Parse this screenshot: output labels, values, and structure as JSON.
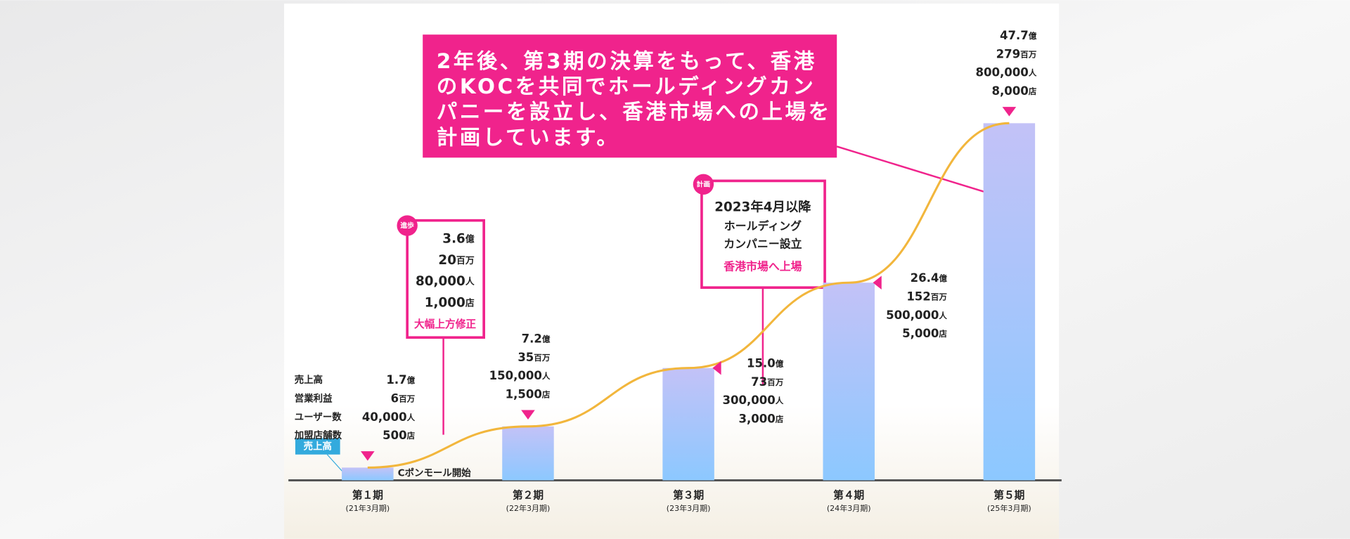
{
  "chart_data": {
    "type": "bar",
    "categories": [
      "第１期",
      "第２期",
      "第３期",
      "第４期",
      "第５期"
    ],
    "sublabels": [
      "(21年3月期)",
      "(22年3月期)",
      "(23年3月期)",
      "(24年3月期)",
      "(25年3月期)"
    ],
    "series": [
      {
        "name": "売上高",
        "unit": "億",
        "color": "#9ec4ff",
        "values": [
          1.7,
          7.2,
          15.0,
          26.4,
          47.7
        ],
        "value_labels": [
          "1.7",
          "7.2",
          "15.0",
          "26.4",
          "47.7"
        ]
      },
      {
        "name": "営業利益",
        "unit": "百万",
        "values": [
          6,
          35,
          73,
          152,
          279
        ]
      },
      {
        "name": "ユーザー数",
        "unit": "人",
        "values": [
          40000,
          150000,
          300000,
          500000,
          800000
        ],
        "value_labels": [
          "40,000",
          "150,000",
          "300,000",
          "500,000",
          "800,000"
        ]
      },
      {
        "name": "加盟店舗数",
        "unit": "店",
        "values": [
          500,
          1500,
          3000,
          5000,
          8000
        ],
        "value_labels": [
          "500",
          "1,500",
          "3,000",
          "5,000",
          "8,000"
        ]
      }
    ],
    "line_color": "#f2b63c",
    "headline": [
      "2年後、第3期の決算をもって、香港",
      "のKOCを共同でホールディングカン",
      "パニーを設立し、香港市場への上場を",
      "計画しています。"
    ],
    "progress_callout": {
      "tag": "進歩",
      "values": [
        3.6,
        20,
        80000,
        1000
      ],
      "value_labels": [
        "3.6",
        "20",
        "80,000",
        "1,000"
      ],
      "note": "大幅上方修正"
    },
    "plan_callout": {
      "tag": "計画",
      "lines": [
        "2023年4月以降",
        "ホールディング",
        "カンパニー設立"
      ],
      "highlight": "香港市場へ上場"
    },
    "start_note": "Cポンモール開始"
  }
}
